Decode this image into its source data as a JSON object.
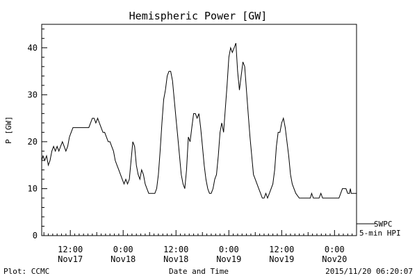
{
  "chart_data": {
    "type": "line",
    "title": "Hemispheric Power [GW]",
    "ylabel": "P [GW]",
    "xlabel": "Date and Time",
    "ylim": [
      0,
      45
    ],
    "yticks": [
      0,
      10,
      20,
      30,
      40
    ],
    "x_unit": "hours since 2015/11/17 00:00",
    "xlim": [
      5.5,
      77.0
    ],
    "xticks": [
      {
        "x": 12,
        "line1": "12:00",
        "line2": "Nov17"
      },
      {
        "x": 24,
        "line1": "0:00",
        "line2": "Nov18"
      },
      {
        "x": 36,
        "line1": "12:00",
        "line2": "Nov18"
      },
      {
        "x": 48,
        "line1": "0:00",
        "line2": "Nov19"
      },
      {
        "x": 60,
        "line1": "12:00",
        "line2": "Nov19"
      },
      {
        "x": 72,
        "line1": "0:00",
        "line2": "Nov20"
      }
    ],
    "grid": false,
    "legend_position": "right-bottom",
    "series": [
      {
        "name": "SWPC 5-min HPI",
        "color": "#000000",
        "points": [
          [
            5.5,
            16
          ],
          [
            5.8,
            17
          ],
          [
            6.2,
            16
          ],
          [
            6.6,
            17
          ],
          [
            7.0,
            15
          ],
          [
            7.4,
            16
          ],
          [
            7.8,
            18
          ],
          [
            8.2,
            19
          ],
          [
            8.6,
            18
          ],
          [
            9.0,
            19
          ],
          [
            9.4,
            18
          ],
          [
            9.8,
            19
          ],
          [
            10.2,
            20
          ],
          [
            10.6,
            19
          ],
          [
            11.0,
            18
          ],
          [
            11.4,
            19
          ],
          [
            11.8,
            21
          ],
          [
            12.2,
            22
          ],
          [
            12.6,
            23
          ],
          [
            13.5,
            23
          ],
          [
            14.5,
            23
          ],
          [
            15.5,
            23
          ],
          [
            16.2,
            23
          ],
          [
            16.6,
            24
          ],
          [
            17.0,
            25
          ],
          [
            17.4,
            25
          ],
          [
            17.8,
            24
          ],
          [
            18.2,
            25
          ],
          [
            18.6,
            24
          ],
          [
            19.0,
            23
          ],
          [
            19.4,
            22
          ],
          [
            19.8,
            22
          ],
          [
            20.2,
            21
          ],
          [
            20.6,
            20
          ],
          [
            21.0,
            20
          ],
          [
            21.4,
            19
          ],
          [
            21.8,
            18
          ],
          [
            22.2,
            16
          ],
          [
            22.6,
            15
          ],
          [
            23.0,
            14
          ],
          [
            23.4,
            13
          ],
          [
            23.8,
            12
          ],
          [
            24.2,
            11
          ],
          [
            24.6,
            12
          ],
          [
            25.0,
            11
          ],
          [
            25.4,
            12
          ],
          [
            25.8,
            16
          ],
          [
            26.2,
            20
          ],
          [
            26.6,
            19
          ],
          [
            27.0,
            15
          ],
          [
            27.4,
            13
          ],
          [
            27.8,
            12
          ],
          [
            28.2,
            14
          ],
          [
            28.6,
            13
          ],
          [
            29.0,
            11
          ],
          [
            29.4,
            10
          ],
          [
            29.8,
            9
          ],
          [
            30.5,
            9
          ],
          [
            31.2,
            9
          ],
          [
            31.6,
            10
          ],
          [
            32.0,
            13
          ],
          [
            32.4,
            18
          ],
          [
            32.8,
            24
          ],
          [
            33.2,
            29
          ],
          [
            33.6,
            31
          ],
          [
            34.0,
            34
          ],
          [
            34.4,
            35
          ],
          [
            34.8,
            35
          ],
          [
            35.2,
            33
          ],
          [
            35.6,
            29
          ],
          [
            36.0,
            25
          ],
          [
            36.4,
            21
          ],
          [
            36.8,
            17
          ],
          [
            37.2,
            13
          ],
          [
            37.6,
            11
          ],
          [
            38.0,
            10
          ],
          [
            38.4,
            14
          ],
          [
            38.8,
            21
          ],
          [
            39.2,
            20
          ],
          [
            39.6,
            23
          ],
          [
            40.0,
            26
          ],
          [
            40.4,
            26
          ],
          [
            40.8,
            25
          ],
          [
            41.2,
            26
          ],
          [
            41.6,
            23
          ],
          [
            42.0,
            19
          ],
          [
            42.4,
            15
          ],
          [
            42.8,
            12
          ],
          [
            43.2,
            10
          ],
          [
            43.6,
            9
          ],
          [
            44.0,
            9
          ],
          [
            44.4,
            10
          ],
          [
            44.8,
            12
          ],
          [
            45.2,
            13
          ],
          [
            45.6,
            17
          ],
          [
            46.0,
            22
          ],
          [
            46.4,
            24
          ],
          [
            46.8,
            22
          ],
          [
            47.2,
            27
          ],
          [
            47.6,
            32
          ],
          [
            48.0,
            38
          ],
          [
            48.4,
            40
          ],
          [
            48.8,
            39
          ],
          [
            49.2,
            40
          ],
          [
            49.6,
            41
          ],
          [
            50.0,
            35
          ],
          [
            50.4,
            31
          ],
          [
            50.8,
            34
          ],
          [
            51.2,
            37
          ],
          [
            51.6,
            36
          ],
          [
            52.0,
            31
          ],
          [
            52.4,
            26
          ],
          [
            52.8,
            21
          ],
          [
            53.2,
            17
          ],
          [
            53.6,
            13
          ],
          [
            54.0,
            12
          ],
          [
            54.4,
            11
          ],
          [
            54.8,
            10
          ],
          [
            55.2,
            9
          ],
          [
            55.6,
            8
          ],
          [
            56.0,
            8
          ],
          [
            56.4,
            9
          ],
          [
            56.8,
            8
          ],
          [
            57.2,
            9
          ],
          [
            57.6,
            10
          ],
          [
            58.0,
            11
          ],
          [
            58.4,
            14
          ],
          [
            58.8,
            19
          ],
          [
            59.2,
            22
          ],
          [
            59.6,
            22
          ],
          [
            60.0,
            24
          ],
          [
            60.4,
            25
          ],
          [
            60.8,
            23
          ],
          [
            61.2,
            20
          ],
          [
            61.6,
            17
          ],
          [
            62.0,
            13
          ],
          [
            62.4,
            11
          ],
          [
            62.8,
            10
          ],
          [
            63.2,
            9
          ],
          [
            64.0,
            8
          ],
          [
            65.0,
            8
          ],
          [
            66.0,
            8
          ],
          [
            66.5,
            8
          ],
          [
            66.8,
            9
          ],
          [
            67.2,
            8
          ],
          [
            68.5,
            8
          ],
          [
            68.9,
            9
          ],
          [
            69.3,
            8
          ],
          [
            70.5,
            8
          ],
          [
            71.5,
            8
          ],
          [
            72.5,
            8
          ],
          [
            73.0,
            8
          ],
          [
            73.4,
            9
          ],
          [
            73.8,
            10
          ],
          [
            74.2,
            10
          ],
          [
            74.6,
            10
          ],
          [
            75.0,
            9
          ],
          [
            75.4,
            9
          ],
          [
            75.6,
            10
          ],
          [
            75.8,
            9
          ],
          [
            76.2,
            9
          ],
          [
            76.6,
            9
          ],
          [
            77.0,
            9
          ]
        ]
      }
    ]
  },
  "labels": {
    "footer_left": "Plot: CCMC",
    "footer_right": "2015/11/20 06:20:07",
    "legend_line1": "SWPC",
    "legend_line2": "5-min HPI"
  }
}
